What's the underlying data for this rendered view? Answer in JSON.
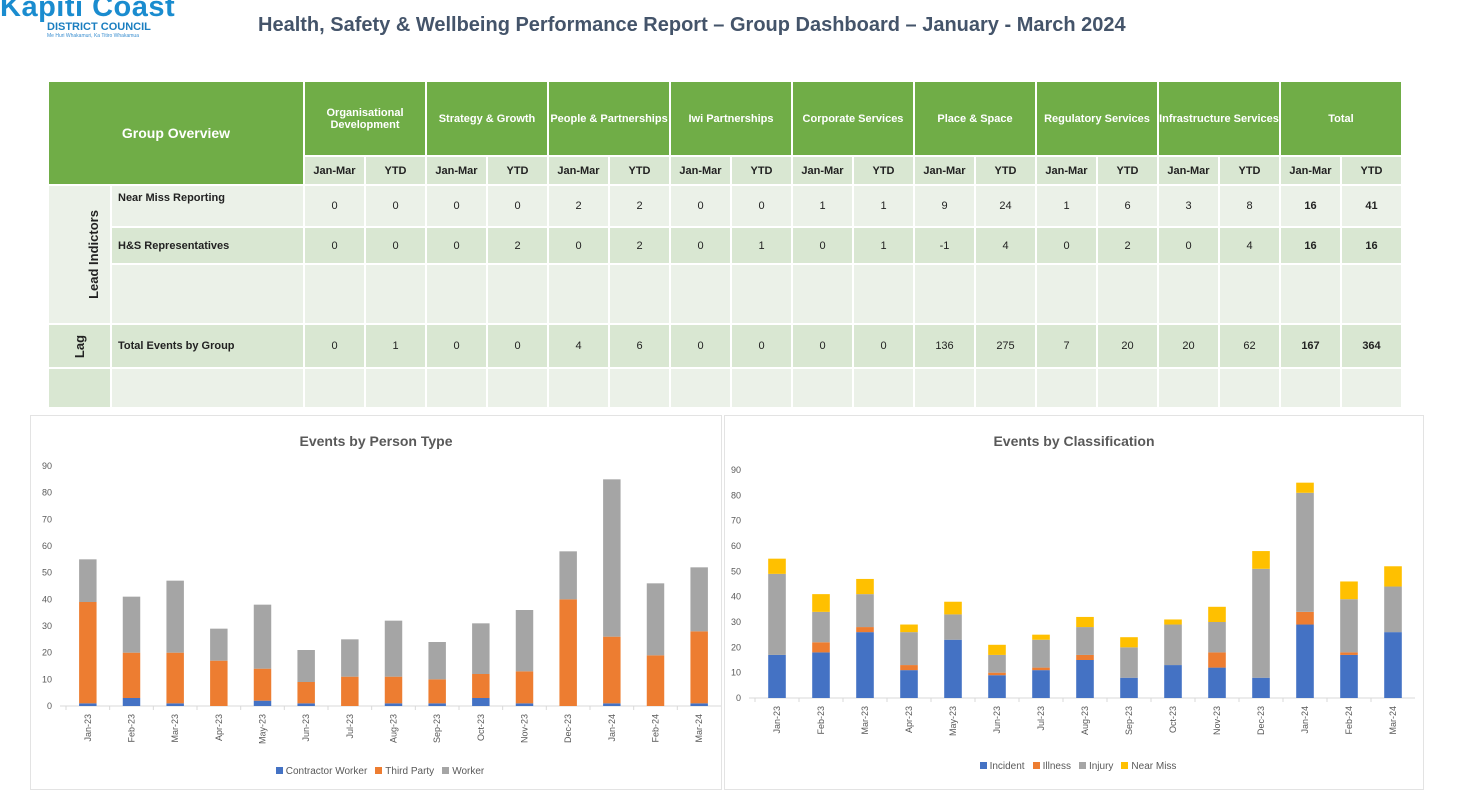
{
  "header": {
    "logo_line1": "Kapiti Coast",
    "logo_line2": "DISTRICT COUNCIL",
    "logo_line3": "Me Huri Whakamuri, Ka Titiro Whakamua",
    "title": "Health, Safety & Wellbeing Performance Report – Group Dashboard – January - March 2024"
  },
  "table": {
    "corner": "Group Overview",
    "groups": [
      "Organisational Development",
      "Strategy & Growth",
      "People & Partnerships",
      "Iwi Partnerships",
      "Corporate Services",
      "Place & Space",
      "Regulatory Services",
      "Infrastructure Services",
      "Total"
    ],
    "sub": [
      "Jan-Mar",
      "YTD"
    ],
    "lead_label": "Lead Indictors",
    "lag_label": "Lag",
    "rows": [
      {
        "label": "Near Miss Reporting",
        "values": [
          "0",
          "0",
          "0",
          "0",
          "2",
          "2",
          "0",
          "0",
          "1",
          "1",
          "9",
          "24",
          "1",
          "6",
          "3",
          "8",
          "16",
          "41"
        ]
      },
      {
        "label": "H&S Representatives",
        "values": [
          "0",
          "0",
          "0",
          "2",
          "0",
          "2",
          "0",
          "1",
          "0",
          "1",
          "-1",
          "4",
          "0",
          "2",
          "0",
          "4",
          "16",
          "16"
        ]
      },
      {
        "label": "Total Events by Group",
        "values": [
          "0",
          "1",
          "0",
          "0",
          "4",
          "6",
          "0",
          "0",
          "0",
          "0",
          "136",
          "275",
          "7",
          "20",
          "20",
          "62",
          "167",
          "364"
        ]
      }
    ]
  },
  "chart_data": [
    {
      "type": "bar",
      "stacked": true,
      "title": "Events by Person Type",
      "ylim": [
        0,
        90
      ],
      "yticks": [
        0,
        10,
        20,
        30,
        40,
        50,
        60,
        70,
        80,
        90
      ],
      "legend": "bottom",
      "categories": [
        "Jan-23",
        "Feb-23",
        "Mar-23",
        "Apr-23",
        "May-23",
        "Jun-23",
        "Jul-23",
        "Aug-23",
        "Sep-23",
        "Oct-23",
        "Nov-23",
        "Dec-23",
        "Jan-24",
        "Feb-24",
        "Mar-24"
      ],
      "series": [
        {
          "name": "Contractor Worker",
          "color": "#4472c4",
          "values": [
            1,
            3,
            1,
            0,
            2,
            1,
            0,
            1,
            1,
            3,
            1,
            0,
            1,
            0,
            1
          ]
        },
        {
          "name": "Third Party",
          "color": "#ed7d31",
          "values": [
            38,
            17,
            19,
            17,
            12,
            8,
            11,
            10,
            9,
            9,
            12,
            40,
            25,
            19,
            27
          ]
        },
        {
          "name": "Worker",
          "color": "#a5a5a5",
          "values": [
            16,
            21,
            27,
            12,
            24,
            12,
            14,
            21,
            14,
            19,
            23,
            18,
            59,
            27,
            24
          ]
        }
      ]
    },
    {
      "type": "bar",
      "stacked": true,
      "title": "Events by Classification",
      "ylim": [
        0,
        90
      ],
      "yticks": [
        0,
        10,
        20,
        30,
        40,
        50,
        60,
        70,
        80,
        90
      ],
      "legend": "bottom",
      "categories": [
        "Jan-23",
        "Feb-23",
        "Mar-23",
        "Apr-23",
        "May-23",
        "Jun-23",
        "Jul-23",
        "Aug-23",
        "Sep-23",
        "Oct-23",
        "Nov-23",
        "Dec-23",
        "Jan-24",
        "Feb-24",
        "Mar-24"
      ],
      "series": [
        {
          "name": "Incident",
          "color": "#4472c4",
          "values": [
            17,
            18,
            26,
            11,
            23,
            9,
            11,
            15,
            8,
            13,
            12,
            8,
            29,
            17,
            26
          ]
        },
        {
          "name": "Illness",
          "color": "#ed7d31",
          "values": [
            0,
            4,
            2,
            2,
            0,
            1,
            1,
            2,
            0,
            0,
            6,
            0,
            5,
            1,
            0
          ]
        },
        {
          "name": "Injury",
          "color": "#a5a5a5",
          "values": [
            32,
            12,
            13,
            13,
            10,
            7,
            11,
            11,
            12,
            16,
            12,
            43,
            47,
            21,
            18
          ]
        },
        {
          "name": "Near Miss",
          "color": "#ffc000",
          "values": [
            6,
            7,
            6,
            3,
            5,
            4,
            2,
            4,
            4,
            2,
            6,
            7,
            4,
            7,
            8
          ]
        }
      ]
    }
  ]
}
